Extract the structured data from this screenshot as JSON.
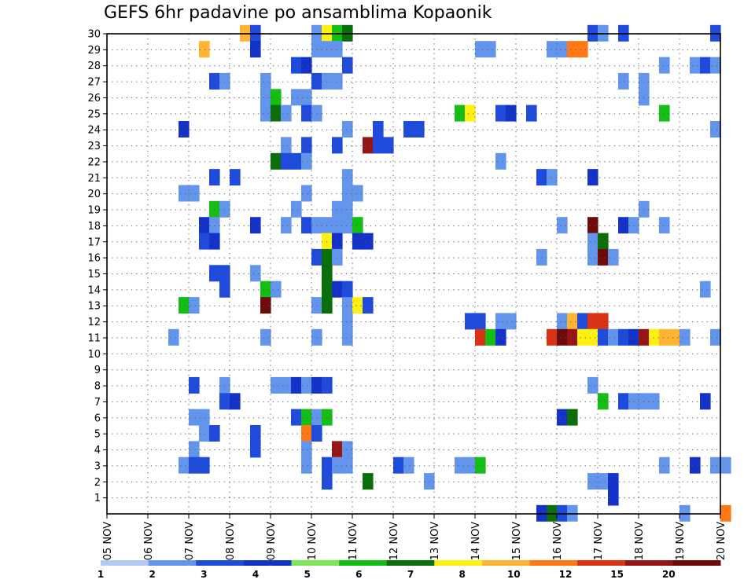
{
  "chart_data": {
    "type": "heatmap",
    "title": "GEFS 6hr padavine po ansamblima Kopaonik",
    "xlabel": "",
    "ylabel": "",
    "x_range": [
      "05 NOV",
      "20 NOV"
    ],
    "x_ticks": [
      "05 NOV",
      "06 NOV",
      "07 NOV",
      "08 NOV",
      "09 NOV",
      "10 NOV",
      "11 NOV",
      "12 NOV",
      "13 NOV",
      "14 NOV",
      "15 NOV",
      "16 NOV",
      "17 NOV",
      "18 NOV",
      "19 NOV",
      "20 NOV"
    ],
    "y_ticks": [
      1,
      2,
      3,
      4,
      5,
      6,
      7,
      8,
      9,
      10,
      11,
      12,
      13,
      14,
      15,
      16,
      17,
      18,
      19,
      20,
      21,
      22,
      23,
      24,
      25,
      26,
      27,
      28,
      29,
      30
    ],
    "y_range": [
      0,
      30
    ],
    "grid": true,
    "legend_position": "bottom",
    "colorbar": {
      "labels": [
        "1",
        "2",
        "3",
        "4",
        "5",
        "6",
        "7",
        "8",
        "10",
        "12",
        "15",
        "20"
      ],
      "colors": [
        "#b4c8f5",
        "#6495ed",
        "#1e4bdc",
        "#1432c8",
        "#7de658",
        "#14be14",
        "#0a6e0a",
        "#fff014",
        "#ffb432",
        "#ff7814",
        "#dc3214",
        "#961414",
        "#6e0a0a"
      ]
    },
    "step_hours": 6,
    "points": [
      {
        "x": "08 NOV 06Z",
        "y": 30,
        "v": "8"
      },
      {
        "x": "08 NOV 12Z",
        "y": 30,
        "v": "2"
      },
      {
        "x": "10 NOV 00Z",
        "y": 30,
        "v": "1"
      },
      {
        "x": "10 NOV 06Z",
        "y": 30,
        "v": "7"
      },
      {
        "x": "10 NOV 12Z",
        "y": 30,
        "v": "5"
      },
      {
        "x": "10 NOV 18Z",
        "y": 30,
        "v": "6"
      },
      {
        "x": "16 NOV 18Z",
        "y": 30,
        "v": "2"
      },
      {
        "x": "17 NOV 00Z",
        "y": 30,
        "v": "1"
      },
      {
        "x": "17 NOV 12Z",
        "y": 30,
        "v": "2"
      },
      {
        "x": "19 NOV 18Z",
        "y": 30,
        "v": "2"
      },
      {
        "x": "07 NOV 06Z",
        "y": 29,
        "v": "8"
      },
      {
        "x": "08 NOV 12Z",
        "y": 29,
        "v": "3"
      },
      {
        "x": "10 NOV 00Z",
        "y": 29,
        "v": "1"
      },
      {
        "x": "10 NOV 06Z",
        "y": 29,
        "v": "1"
      },
      {
        "x": "10 NOV 12Z",
        "y": 29,
        "v": "1"
      },
      {
        "x": "14 NOV 00Z",
        "y": 29,
        "v": "1"
      },
      {
        "x": "14 NOV 06Z",
        "y": 29,
        "v": "1"
      },
      {
        "x": "15 NOV 18Z",
        "y": 29,
        "v": "1"
      },
      {
        "x": "16 NOV 00Z",
        "y": 29,
        "v": "1"
      },
      {
        "x": "16 NOV 06Z",
        "y": 29,
        "v": "10"
      },
      {
        "x": "16 NOV 12Z",
        "y": 29,
        "v": "10"
      },
      {
        "x": "09 NOV 12Z",
        "y": 28,
        "v": "2"
      },
      {
        "x": "09 NOV 18Z",
        "y": 28,
        "v": "3"
      },
      {
        "x": "10 NOV 18Z",
        "y": 28,
        "v": "2"
      },
      {
        "x": "18 NOV 12Z",
        "y": 28,
        "v": "1"
      },
      {
        "x": "19 NOV 06Z",
        "y": 28,
        "v": "1"
      },
      {
        "x": "19 NOV 12Z",
        "y": 28,
        "v": "2"
      },
      {
        "x": "19 NOV 18Z",
        "y": 28,
        "v": "1"
      },
      {
        "x": "07 NOV 12Z",
        "y": 27,
        "v": "2"
      },
      {
        "x": "07 NOV 18Z",
        "y": 27,
        "v": "1"
      },
      {
        "x": "08 NOV 18Z",
        "y": 27,
        "v": "1"
      },
      {
        "x": "10 NOV 00Z",
        "y": 27,
        "v": "2"
      },
      {
        "x": "10 NOV 06Z",
        "y": 27,
        "v": "1"
      },
      {
        "x": "10 NOV 12Z",
        "y": 27,
        "v": "1"
      },
      {
        "x": "17 NOV 12Z",
        "y": 27,
        "v": "1"
      },
      {
        "x": "18 NOV 00Z",
        "y": 27,
        "v": "1"
      },
      {
        "x": "08 NOV 18Z",
        "y": 26,
        "v": "1"
      },
      {
        "x": "09 NOV 00Z",
        "y": 26,
        "v": "5"
      },
      {
        "x": "09 NOV 12Z",
        "y": 26,
        "v": "1"
      },
      {
        "x": "09 NOV 18Z",
        "y": 26,
        "v": "1"
      },
      {
        "x": "18 NOV 00Z",
        "y": 26,
        "v": "1"
      },
      {
        "x": "08 NOV 18Z",
        "y": 25,
        "v": "1"
      },
      {
        "x": "09 NOV 00Z",
        "y": 25,
        "v": "6"
      },
      {
        "x": "09 NOV 06Z",
        "y": 25,
        "v": "1"
      },
      {
        "x": "09 NOV 18Z",
        "y": 25,
        "v": "2"
      },
      {
        "x": "10 NOV 00Z",
        "y": 25,
        "v": "1"
      },
      {
        "x": "13 NOV 12Z",
        "y": 25,
        "v": "5"
      },
      {
        "x": "13 NOV 18Z",
        "y": 25,
        "v": "7"
      },
      {
        "x": "14 NOV 12Z",
        "y": 25,
        "v": "2"
      },
      {
        "x": "14 NOV 18Z",
        "y": 25,
        "v": "3"
      },
      {
        "x": "15 NOV 06Z",
        "y": 25,
        "v": "2"
      },
      {
        "x": "18 NOV 12Z",
        "y": 25,
        "v": "5"
      },
      {
        "x": "06 NOV 18Z",
        "y": 24,
        "v": "3"
      },
      {
        "x": "10 NOV 18Z",
        "y": 24,
        "v": "1"
      },
      {
        "x": "11 NOV 12Z",
        "y": 24,
        "v": "2"
      },
      {
        "x": "12 NOV 06Z",
        "y": 24,
        "v": "2"
      },
      {
        "x": "12 NOV 12Z",
        "y": 24,
        "v": "2"
      },
      {
        "x": "19 NOV 18Z",
        "y": 24,
        "v": "1"
      },
      {
        "x": "09 NOV 06Z",
        "y": 23,
        "v": "1"
      },
      {
        "x": "09 NOV 18Z",
        "y": 23,
        "v": "2"
      },
      {
        "x": "10 NOV 12Z",
        "y": 23,
        "v": "2"
      },
      {
        "x": "11 NOV 06Z",
        "y": 23,
        "v": "15"
      },
      {
        "x": "11 NOV 12Z",
        "y": 23,
        "v": "2"
      },
      {
        "x": "11 NOV 18Z",
        "y": 23,
        "v": "2"
      },
      {
        "x": "09 NOV 00Z",
        "y": 22,
        "v": "6"
      },
      {
        "x": "09 NOV 06Z",
        "y": 22,
        "v": "2"
      },
      {
        "x": "09 NOV 12Z",
        "y": 22,
        "v": "2"
      },
      {
        "x": "09 NOV 18Z",
        "y": 22,
        "v": "1"
      },
      {
        "x": "14 NOV 12Z",
        "y": 22,
        "v": "1"
      },
      {
        "x": "07 NOV 12Z",
        "y": 21,
        "v": "2"
      },
      {
        "x": "08 NOV 00Z",
        "y": 21,
        "v": "2"
      },
      {
        "x": "10 NOV 18Z",
        "y": 21,
        "v": "1"
      },
      {
        "x": "15 NOV 12Z",
        "y": 21,
        "v": "2"
      },
      {
        "x": "15 NOV 18Z",
        "y": 21,
        "v": "1"
      },
      {
        "x": "16 NOV 18Z",
        "y": 21,
        "v": "3"
      },
      {
        "x": "06 NOV 18Z",
        "y": 20,
        "v": "1"
      },
      {
        "x": "07 NOV 00Z",
        "y": 20,
        "v": "1"
      },
      {
        "x": "09 NOV 18Z",
        "y": 20,
        "v": "1"
      },
      {
        "x": "10 NOV 18Z",
        "y": 20,
        "v": "1"
      },
      {
        "x": "11 NOV 00Z",
        "y": 20,
        "v": "1"
      },
      {
        "x": "07 NOV 12Z",
        "y": 19,
        "v": "5"
      },
      {
        "x": "07 NOV 18Z",
        "y": 19,
        "v": "1"
      },
      {
        "x": "09 NOV 12Z",
        "y": 19,
        "v": "1"
      },
      {
        "x": "10 NOV 12Z",
        "y": 19,
        "v": "1"
      },
      {
        "x": "10 NOV 18Z",
        "y": 19,
        "v": "1"
      },
      {
        "x": "18 NOV 00Z",
        "y": 19,
        "v": "1"
      },
      {
        "x": "07 NOV 06Z",
        "y": 18,
        "v": "3"
      },
      {
        "x": "07 NOV 12Z",
        "y": 18,
        "v": "1"
      },
      {
        "x": "08 NOV 12Z",
        "y": 18,
        "v": "3"
      },
      {
        "x": "09 NOV 06Z",
        "y": 18,
        "v": "1"
      },
      {
        "x": "09 NOV 18Z",
        "y": 18,
        "v": "2"
      },
      {
        "x": "10 NOV 00Z",
        "y": 18,
        "v": "1"
      },
      {
        "x": "10 NOV 06Z",
        "y": 18,
        "v": "1"
      },
      {
        "x": "10 NOV 12Z",
        "y": 18,
        "v": "1"
      },
      {
        "x": "10 NOV 18Z",
        "y": 18,
        "v": "1"
      },
      {
        "x": "11 NOV 00Z",
        "y": 18,
        "v": "5"
      },
      {
        "x": "16 NOV 00Z",
        "y": 18,
        "v": "1"
      },
      {
        "x": "16 NOV 18Z",
        "y": 18,
        "v": "20"
      },
      {
        "x": "17 NOV 12Z",
        "y": 18,
        "v": "3"
      },
      {
        "x": "17 NOV 18Z",
        "y": 18,
        "v": "1"
      },
      {
        "x": "18 NOV 12Z",
        "y": 18,
        "v": "1"
      },
      {
        "x": "07 NOV 06Z",
        "y": 17,
        "v": "2"
      },
      {
        "x": "07 NOV 12Z",
        "y": 17,
        "v": "3"
      },
      {
        "x": "10 NOV 06Z",
        "y": 17,
        "v": "7"
      },
      {
        "x": "10 NOV 12Z",
        "y": 17,
        "v": "3"
      },
      {
        "x": "11 NOV 00Z",
        "y": 17,
        "v": "3"
      },
      {
        "x": "11 NOV 06Z",
        "y": 17,
        "v": "3"
      },
      {
        "x": "16 NOV 18Z",
        "y": 17,
        "v": "1"
      },
      {
        "x": "17 NOV 00Z",
        "y": 17,
        "v": "6"
      },
      {
        "x": "10 NOV 00Z",
        "y": 16,
        "v": "2"
      },
      {
        "x": "10 NOV 06Z",
        "y": 16,
        "v": "6"
      },
      {
        "x": "10 NOV 12Z",
        "y": 16,
        "v": "1"
      },
      {
        "x": "15 NOV 12Z",
        "y": 16,
        "v": "1"
      },
      {
        "x": "16 NOV 18Z",
        "y": 16,
        "v": "1"
      },
      {
        "x": "17 NOV 00Z",
        "y": 16,
        "v": "20"
      },
      {
        "x": "17 NOV 06Z",
        "y": 16,
        "v": "1"
      },
      {
        "x": "07 NOV 12Z",
        "y": 15,
        "v": "2"
      },
      {
        "x": "07 NOV 18Z",
        "y": 15,
        "v": "2"
      },
      {
        "x": "08 NOV 12Z",
        "y": 15,
        "v": "1"
      },
      {
        "x": "10 NOV 06Z",
        "y": 15,
        "v": "6"
      },
      {
        "x": "07 NOV 18Z",
        "y": 14,
        "v": "2"
      },
      {
        "x": "08 NOV 18Z",
        "y": 14,
        "v": "5"
      },
      {
        "x": "09 NOV 00Z",
        "y": 14,
        "v": "1"
      },
      {
        "x": "10 NOV 06Z",
        "y": 14,
        "v": "6"
      },
      {
        "x": "10 NOV 12Z",
        "y": 14,
        "v": "3"
      },
      {
        "x": "10 NOV 18Z",
        "y": 14,
        "v": "2"
      },
      {
        "x": "19 NOV 12Z",
        "y": 14,
        "v": "1"
      },
      {
        "x": "06 NOV 18Z",
        "y": 13,
        "v": "5"
      },
      {
        "x": "07 NOV 00Z",
        "y": 13,
        "v": "1"
      },
      {
        "x": "08 NOV 18Z",
        "y": 13,
        "v": "20"
      },
      {
        "x": "10 NOV 00Z",
        "y": 13,
        "v": "1"
      },
      {
        "x": "10 NOV 06Z",
        "y": 13,
        "v": "6"
      },
      {
        "x": "10 NOV 18Z",
        "y": 13,
        "v": "1"
      },
      {
        "x": "11 NOV 00Z",
        "y": 13,
        "v": "7"
      },
      {
        "x": "11 NOV 06Z",
        "y": 13,
        "v": "2"
      },
      {
        "x": "10 NOV 18Z",
        "y": 12,
        "v": "1"
      },
      {
        "x": "13 NOV 18Z",
        "y": 12,
        "v": "2"
      },
      {
        "x": "14 NOV 00Z",
        "y": 12,
        "v": "2"
      },
      {
        "x": "14 NOV 12Z",
        "y": 12,
        "v": "1"
      },
      {
        "x": "14 NOV 18Z",
        "y": 12,
        "v": "1"
      },
      {
        "x": "16 NOV 00Z",
        "y": 12,
        "v": "1"
      },
      {
        "x": "16 NOV 06Z",
        "y": 12,
        "v": "8"
      },
      {
        "x": "16 NOV 12Z",
        "y": 12,
        "v": "2"
      },
      {
        "x": "16 NOV 18Z",
        "y": 12,
        "v": "12"
      },
      {
        "x": "17 NOV 00Z",
        "y": 12,
        "v": "12"
      },
      {
        "x": "06 NOV 12Z",
        "y": 11,
        "v": "1"
      },
      {
        "x": "08 NOV 18Z",
        "y": 11,
        "v": "1"
      },
      {
        "x": "10 NOV 00Z",
        "y": 11,
        "v": "1"
      },
      {
        "x": "10 NOV 18Z",
        "y": 11,
        "v": "1"
      },
      {
        "x": "14 NOV 00Z",
        "y": 11,
        "v": "12"
      },
      {
        "x": "14 NOV 06Z",
        "y": 11,
        "v": "5"
      },
      {
        "x": "14 NOV 12Z",
        "y": 11,
        "v": "3"
      },
      {
        "x": "15 NOV 18Z",
        "y": 11,
        "v": "12"
      },
      {
        "x": "16 NOV 00Z",
        "y": 11,
        "v": "20"
      },
      {
        "x": "16 NOV 06Z",
        "y": 11,
        "v": "15"
      },
      {
        "x": "16 NOV 12Z",
        "y": 11,
        "v": "7"
      },
      {
        "x": "16 NOV 18Z",
        "y": 11,
        "v": "7"
      },
      {
        "x": "17 NOV 00Z",
        "y": 11,
        "v": "2"
      },
      {
        "x": "17 NOV 06Z",
        "y": 11,
        "v": "1"
      },
      {
        "x": "17 NOV 12Z",
        "y": 11,
        "v": "2"
      },
      {
        "x": "17 NOV 18Z",
        "y": 11,
        "v": "3"
      },
      {
        "x": "18 NOV 00Z",
        "y": 11,
        "v": "15"
      },
      {
        "x": "18 NOV 06Z",
        "y": 11,
        "v": "7"
      },
      {
        "x": "18 NOV 12Z",
        "y": 11,
        "v": "8"
      },
      {
        "x": "18 NOV 18Z",
        "y": 11,
        "v": "8"
      },
      {
        "x": "19 NOV 00Z",
        "y": 11,
        "v": "1"
      },
      {
        "x": "19 NOV 18Z",
        "y": 11,
        "v": "1"
      },
      {
        "x": "07 NOV 00Z",
        "y": 8,
        "v": "2"
      },
      {
        "x": "07 NOV 18Z",
        "y": 8,
        "v": "1"
      },
      {
        "x": "09 NOV 00Z",
        "y": 8,
        "v": "1"
      },
      {
        "x": "09 NOV 06Z",
        "y": 8,
        "v": "1"
      },
      {
        "x": "09 NOV 12Z",
        "y": 8,
        "v": "3"
      },
      {
        "x": "09 NOV 18Z",
        "y": 8,
        "v": "1"
      },
      {
        "x": "10 NOV 00Z",
        "y": 8,
        "v": "3"
      },
      {
        "x": "10 NOV 06Z",
        "y": 8,
        "v": "2"
      },
      {
        "x": "16 NOV 18Z",
        "y": 8,
        "v": "1"
      },
      {
        "x": "07 NOV 18Z",
        "y": 7,
        "v": "2"
      },
      {
        "x": "08 NOV 00Z",
        "y": 7,
        "v": "3"
      },
      {
        "x": "17 NOV 00Z",
        "y": 7,
        "v": "5"
      },
      {
        "x": "17 NOV 12Z",
        "y": 7,
        "v": "2"
      },
      {
        "x": "17 NOV 18Z",
        "y": 7,
        "v": "1"
      },
      {
        "x": "18 NOV 00Z",
        "y": 7,
        "v": "1"
      },
      {
        "x": "18 NOV 06Z",
        "y": 7,
        "v": "1"
      },
      {
        "x": "19 NOV 12Z",
        "y": 7,
        "v": "3"
      },
      {
        "x": "07 NOV 00Z",
        "y": 6,
        "v": "1"
      },
      {
        "x": "07 NOV 06Z",
        "y": 6,
        "v": "1"
      },
      {
        "x": "09 NOV 12Z",
        "y": 6,
        "v": "2"
      },
      {
        "x": "09 NOV 18Z",
        "y": 6,
        "v": "5"
      },
      {
        "x": "10 NOV 00Z",
        "y": 6,
        "v": "1"
      },
      {
        "x": "10 NOV 06Z",
        "y": 6,
        "v": "5"
      },
      {
        "x": "16 NOV 00Z",
        "y": 6,
        "v": "3"
      },
      {
        "x": "16 NOV 06Z",
        "y": 6,
        "v": "6"
      },
      {
        "x": "07 NOV 06Z",
        "y": 5,
        "v": "1"
      },
      {
        "x": "07 NOV 12Z",
        "y": 5,
        "v": "2"
      },
      {
        "x": "08 NOV 12Z",
        "y": 5,
        "v": "2"
      },
      {
        "x": "09 NOV 18Z",
        "y": 5,
        "v": "10"
      },
      {
        "x": "10 NOV 00Z",
        "y": 5,
        "v": "2"
      },
      {
        "x": "07 NOV 00Z",
        "y": 4,
        "v": "1"
      },
      {
        "x": "08 NOV 12Z",
        "y": 4,
        "v": "2"
      },
      {
        "x": "09 NOV 18Z",
        "y": 4,
        "v": "1"
      },
      {
        "x": "10 NOV 12Z",
        "y": 4,
        "v": "15"
      },
      {
        "x": "10 NOV 18Z",
        "y": 4,
        "v": "1"
      },
      {
        "x": "06 NOV 18Z",
        "y": 3,
        "v": "1"
      },
      {
        "x": "07 NOV 00Z",
        "y": 3,
        "v": "2"
      },
      {
        "x": "07 NOV 06Z",
        "y": 3,
        "v": "2"
      },
      {
        "x": "09 NOV 18Z",
        "y": 3,
        "v": "1"
      },
      {
        "x": "10 NOV 06Z",
        "y": 3,
        "v": "2"
      },
      {
        "x": "10 NOV 12Z",
        "y": 3,
        "v": "1"
      },
      {
        "x": "10 NOV 18Z",
        "y": 3,
        "v": "1"
      },
      {
        "x": "12 NOV 00Z",
        "y": 3,
        "v": "2"
      },
      {
        "x": "12 NOV 06Z",
        "y": 3,
        "v": "1"
      },
      {
        "x": "13 NOV 12Z",
        "y": 3,
        "v": "1"
      },
      {
        "x": "13 NOV 18Z",
        "y": 3,
        "v": "1"
      },
      {
        "x": "14 NOV 00Z",
        "y": 3,
        "v": "5"
      },
      {
        "x": "18 NOV 12Z",
        "y": 3,
        "v": "1"
      },
      {
        "x": "19 NOV 06Z",
        "y": 3,
        "v": "3"
      },
      {
        "x": "19 NOV 18Z",
        "y": 3,
        "v": "1"
      },
      {
        "x": "20 NOV 00Z",
        "y": 3,
        "v": "1"
      },
      {
        "x": "10 NOV 06Z",
        "y": 2,
        "v": "2"
      },
      {
        "x": "11 NOV 06Z",
        "y": 2,
        "v": "6"
      },
      {
        "x": "12 NOV 18Z",
        "y": 2,
        "v": "1"
      },
      {
        "x": "16 NOV 18Z",
        "y": 2,
        "v": "1"
      },
      {
        "x": "17 NOV 00Z",
        "y": 2,
        "v": "1"
      },
      {
        "x": "17 NOV 06Z",
        "y": 2,
        "v": "3"
      },
      {
        "x": "17 NOV 06Z",
        "y": 1,
        "v": "3"
      },
      {
        "x": "15 NOV 12Z",
        "y": 0,
        "v": "3"
      },
      {
        "x": "15 NOV 18Z",
        "y": 0,
        "v": "6"
      },
      {
        "x": "16 NOV 00Z",
        "y": 0,
        "v": "2"
      },
      {
        "x": "16 NOV 06Z",
        "y": 0,
        "v": "1"
      },
      {
        "x": "19 NOV 00Z",
        "y": 0,
        "v": "1"
      },
      {
        "x": "20 NOV 00Z",
        "y": 0,
        "v": "10"
      }
    ]
  }
}
